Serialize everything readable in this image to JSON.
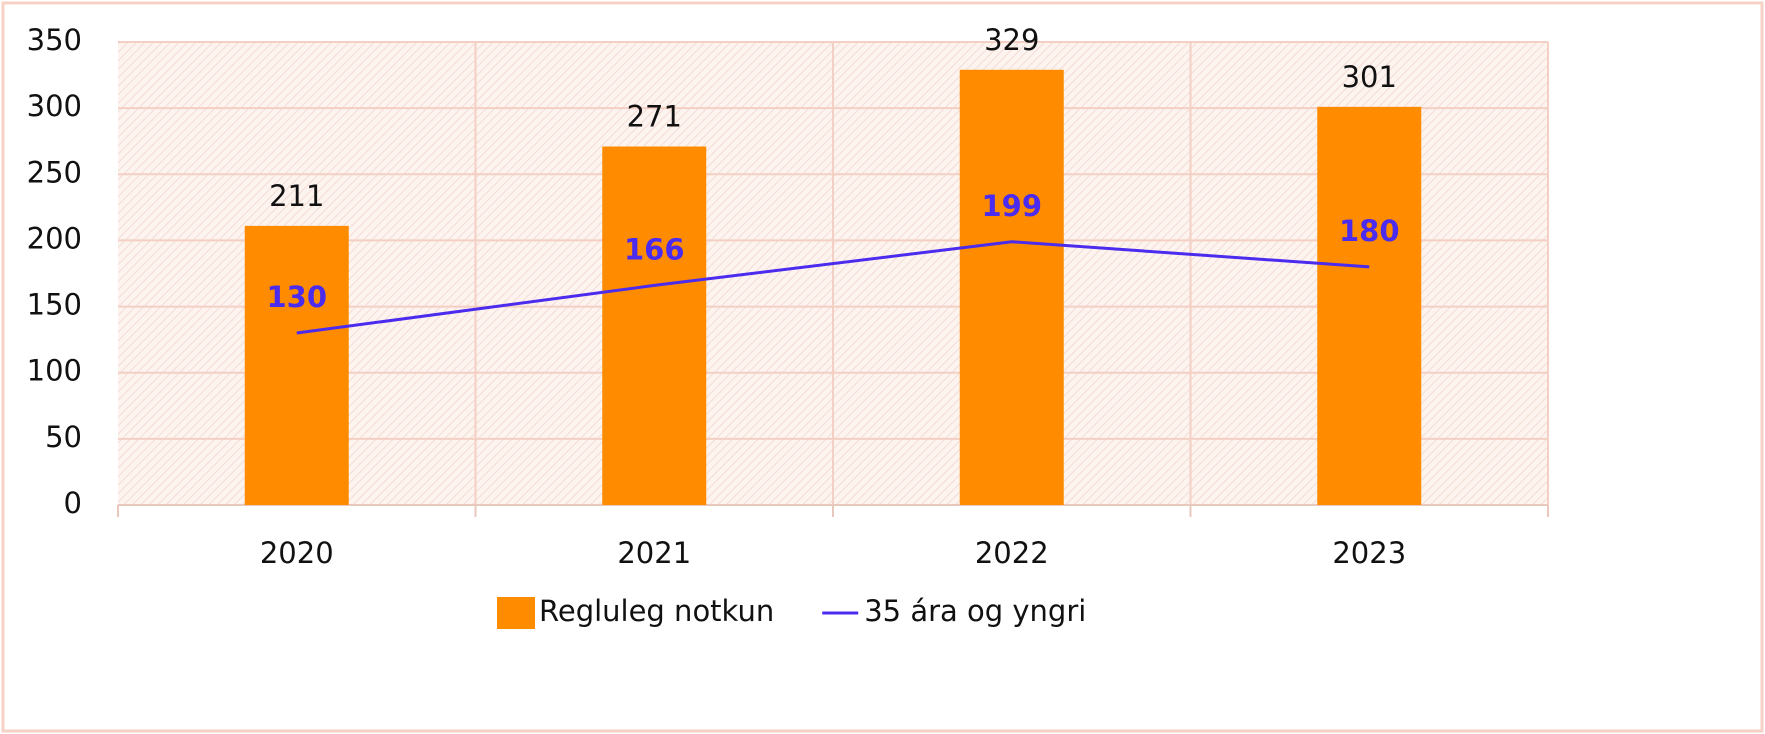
{
  "chart_data": {
    "type": "bar",
    "categories": [
      "2020",
      "2021",
      "2022",
      "2023"
    ],
    "series": [
      {
        "name": "Regluleg notkun",
        "type": "bar",
        "color": "#ff8c00",
        "values": [
          211,
          271,
          329,
          301
        ]
      },
      {
        "name": "35 ára og yngri",
        "type": "line",
        "color": "#4b2bed",
        "values": [
          130,
          166,
          199,
          180
        ]
      }
    ],
    "ylim": [
      0,
      350
    ],
    "yticks": [
      0,
      50,
      100,
      150,
      200,
      250,
      300,
      350
    ],
    "grid": true,
    "legend": "bottom"
  }
}
